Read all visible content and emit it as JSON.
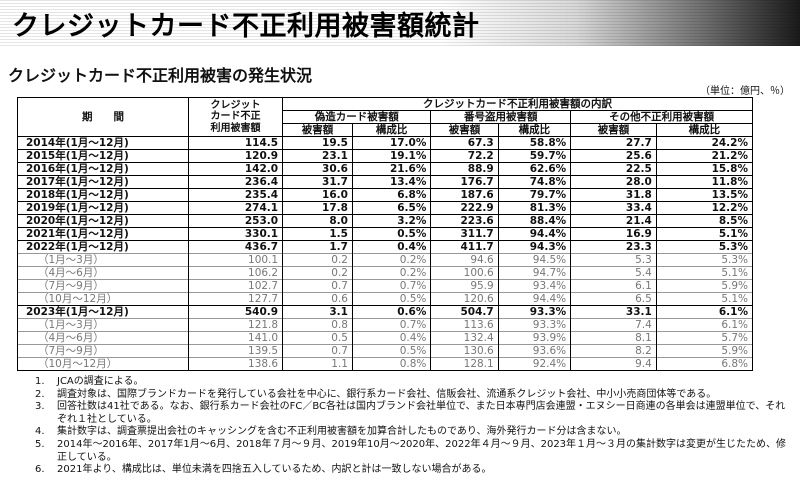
{
  "title": "クレジットカード不正利用被害額統計",
  "subtitle": "クレジットカード不正利用被害の発生状況",
  "unit": "（単位：億円、％）",
  "table": {
    "col_period": "期　　間",
    "col_total_line1": "クレジット",
    "col_total_line2": "カード不正",
    "col_total_line3": "利用被害額",
    "col_breakdown": "クレジットカード不正利用被害額の内訳",
    "group_counterfeit": "偽造カード被害額",
    "group_number_theft": "番号盗用被害額",
    "group_other": "その他不正利用被害額",
    "sub_amount": "被害額",
    "sub_ratio": "構成比",
    "rows": [
      {
        "period": "2014年(1月～12月)",
        "total": "114.5",
        "c_amt": "19.5",
        "c_ratio": "17.0%",
        "n_amt": "67.3",
        "n_ratio": "58.8%",
        "o_amt": "27.7",
        "o_ratio": "24.2%"
      },
      {
        "period": "2015年(1月～12月)",
        "total": "120.9",
        "c_amt": "23.1",
        "c_ratio": "19.1%",
        "n_amt": "72.2",
        "n_ratio": "59.7%",
        "o_amt": "25.6",
        "o_ratio": "21.2%"
      },
      {
        "period": "2016年(1月～12月)",
        "total": "142.0",
        "c_amt": "30.6",
        "c_ratio": "21.6%",
        "n_amt": "88.9",
        "n_ratio": "62.6%",
        "o_amt": "22.5",
        "o_ratio": "15.8%"
      },
      {
        "period": "2017年(1月～12月)",
        "total": "236.4",
        "c_amt": "31.7",
        "c_ratio": "13.4%",
        "n_amt": "176.7",
        "n_ratio": "74.8%",
        "o_amt": "28.0",
        "o_ratio": "11.8%"
      },
      {
        "period": "2018年(1月～12月)",
        "total": "235.4",
        "c_amt": "16.0",
        "c_ratio": "6.8%",
        "n_amt": "187.6",
        "n_ratio": "79.7%",
        "o_amt": "31.8",
        "o_ratio": "13.5%"
      },
      {
        "period": "2019年(1月～12月)",
        "total": "274.1",
        "c_amt": "17.8",
        "c_ratio": "6.5%",
        "n_amt": "222.9",
        "n_ratio": "81.3%",
        "o_amt": "33.4",
        "o_ratio": "12.2%"
      },
      {
        "period": "2020年(1月～12月)",
        "total": "253.0",
        "c_amt": "8.0",
        "c_ratio": "3.2%",
        "n_amt": "223.6",
        "n_ratio": "88.4%",
        "o_amt": "21.4",
        "o_ratio": "8.5%"
      },
      {
        "period": "2021年(1月～12月)",
        "total": "330.1",
        "c_amt": "1.5",
        "c_ratio": "0.5%",
        "n_amt": "311.7",
        "n_ratio": "94.4%",
        "o_amt": "16.9",
        "o_ratio": "5.1%"
      },
      {
        "period": "2022年(1月～12月)",
        "total": "436.7",
        "c_amt": "1.7",
        "c_ratio": "0.4%",
        "n_amt": "411.7",
        "n_ratio": "94.3%",
        "o_amt": "23.3",
        "o_ratio": "5.3%"
      },
      {
        "period": "（1月～3月）",
        "total": "100.1",
        "c_amt": "0.2",
        "c_ratio": "0.2%",
        "n_amt": "94.6",
        "n_ratio": "94.5%",
        "o_amt": "5.3",
        "o_ratio": "5.3%"
      },
      {
        "period": "（4月～6月）",
        "total": "106.2",
        "c_amt": "0.2",
        "c_ratio": "0.2%",
        "n_amt": "100.6",
        "n_ratio": "94.7%",
        "o_amt": "5.4",
        "o_ratio": "5.1%"
      },
      {
        "period": "（7月～9月）",
        "total": "102.7",
        "c_amt": "0.7",
        "c_ratio": "0.7%",
        "n_amt": "95.9",
        "n_ratio": "93.4%",
        "o_amt": "6.1",
        "o_ratio": "5.9%"
      },
      {
        "period": "（10月～12月）",
        "total": "127.7",
        "c_amt": "0.6",
        "c_ratio": "0.5%",
        "n_amt": "120.6",
        "n_ratio": "94.4%",
        "o_amt": "6.5",
        "o_ratio": "5.1%"
      },
      {
        "period": "2023年(1月～12月)",
        "total": "540.9",
        "c_amt": "3.1",
        "c_ratio": "0.6%",
        "n_amt": "504.7",
        "n_ratio": "93.3%",
        "o_amt": "33.1",
        "o_ratio": "6.1%"
      },
      {
        "period": "（1月～3月）",
        "total": "121.8",
        "c_amt": "0.8",
        "c_ratio": "0.7%",
        "n_amt": "113.6",
        "n_ratio": "93.3%",
        "o_amt": "7.4",
        "o_ratio": "6.1%"
      },
      {
        "period": "（4月～6月）",
        "total": "141.0",
        "c_amt": "0.5",
        "c_ratio": "0.4%",
        "n_amt": "132.4",
        "n_ratio": "93.9%",
        "o_amt": "8.1",
        "o_ratio": "5.7%"
      },
      {
        "period": "（7月～9月）",
        "total": "139.5",
        "c_amt": "0.7",
        "c_ratio": "0.5%",
        "n_amt": "130.6",
        "n_ratio": "93.6%",
        "o_amt": "8.2",
        "o_ratio": "5.9%"
      },
      {
        "period": "（10月～12月）",
        "total": "138.6",
        "c_amt": "1.1",
        "c_ratio": "0.8%",
        "n_amt": "128.1",
        "n_ratio": "92.4%",
        "o_amt": "9.4",
        "o_ratio": "6.8%"
      }
    ]
  },
  "notes": [
    {
      "num": "1.",
      "text": "JCAの調査による。"
    },
    {
      "num": "2.",
      "text": "調査対象は、国際ブランドカードを発行している会社を中心に、銀行系カード会社、信販会社、流通系クレジット会社、中小小売商団体等である。"
    },
    {
      "num": "3.",
      "text": "回答社数は41社である。なお、銀行系カード会社のFC／BC各社は国内ブランド会社単位で、また日本専門店会連盟・エヌシー日商連の各単会は連盟単位で、それぞれ１社としている。"
    },
    {
      "num": "4.",
      "text": "集計数字は、調査票提出会社のキャッシングを含む不正利用被害額を加算合計したものであり、海外発行カード分は含まない。"
    },
    {
      "num": "5.",
      "text": "2014年～2016年、2017年1月～6月、2018年７月～９月、2019年10月～2020年、2022年４月～９月、2023年１月～３月の集計数字は変更が生じたため、修正している。"
    },
    {
      "num": "6.",
      "text": "2021年より、構成比は、単位未満を四捨五入しているため、内訳と計は一致しない場合がある。"
    }
  ]
}
